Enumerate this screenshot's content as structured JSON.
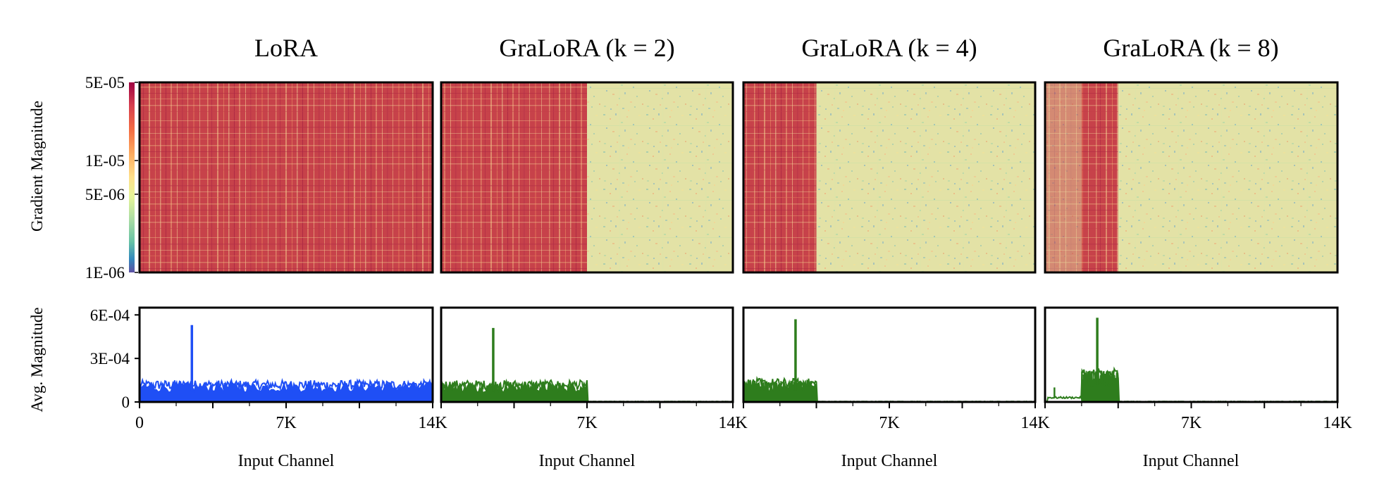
{
  "chart_data": {
    "type": "heatmap",
    "panels": [
      {
        "title": "LoRA",
        "active_range": [
          0,
          14
        ],
        "spike_at": 2.5,
        "spike_value": 0.00053,
        "base_level": 0.00012,
        "line_color": "#1f4ff5"
      },
      {
        "title": "GraLoRA (k = 2)",
        "active_range": [
          0,
          7
        ],
        "spike_at": 2.5,
        "spike_value": 0.00051,
        "base_level": 0.00012,
        "line_color": "#2e7d1d"
      },
      {
        "title": "GraLoRA (k = 4)",
        "active_range": [
          0,
          3.5
        ],
        "spike_at": 2.5,
        "spike_value": 0.00057,
        "base_level": 0.00013,
        "line_color": "#2e7d1d"
      },
      {
        "title": "GraLoRA (k = 8)",
        "active_range": [
          1.75,
          3.5
        ],
        "spike_at": 2.5,
        "spike_value": 0.00058,
        "base_level": 0.00019,
        "line_color": "#2e7d1d"
      }
    ],
    "heatmap": {
      "ylabel": "Gradient Magnitude",
      "colorbar_ticks": [
        "5E-05",
        "1E-05",
        "5E-06",
        "1E-06"
      ],
      "colorbar_values": [
        5e-05,
        1e-05,
        5e-06,
        1e-06
      ],
      "scale": "log",
      "colormap": "Spectral_r"
    },
    "line": {
      "ylabel": "Avg. Magnitude",
      "ytick_labels": [
        "6E-04",
        "3E-04",
        "0"
      ],
      "ytick_values": [
        0.0006,
        0.0003,
        0
      ],
      "ylim": [
        0,
        0.00065
      ]
    },
    "x": {
      "xlabel": "Input Channel",
      "xlim": [
        0,
        14
      ],
      "tick_values": [
        0,
        7,
        14
      ],
      "tick_labels": [
        "0",
        "7K",
        "14K"
      ],
      "minor_tick_values": [
        3.5,
        10.5
      ]
    }
  }
}
